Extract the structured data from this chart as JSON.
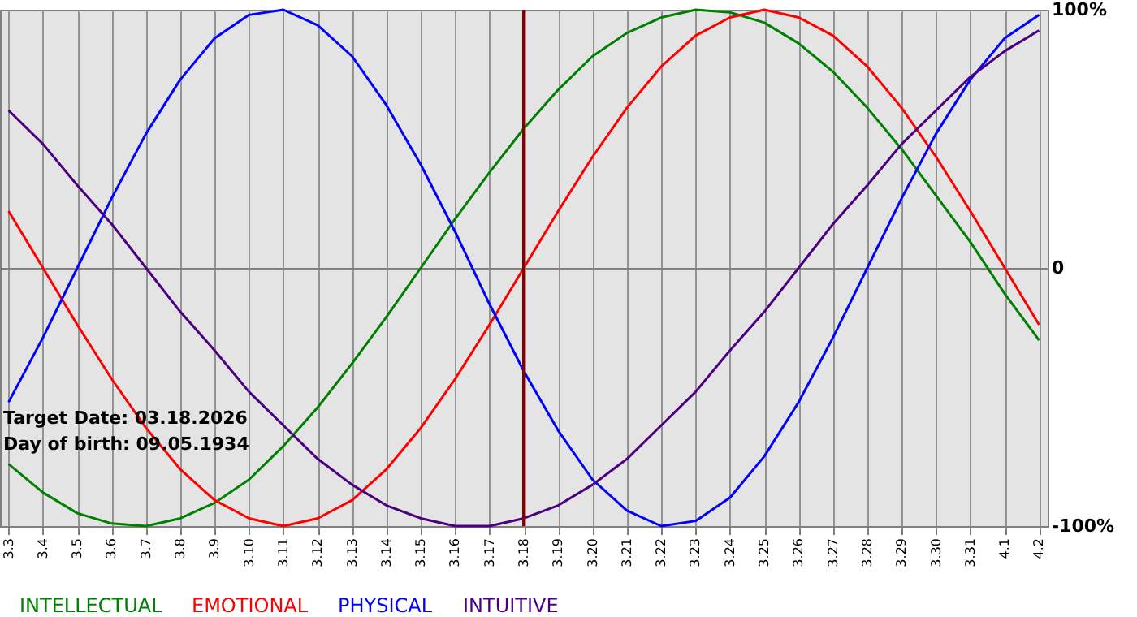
{
  "chart_data": {
    "type": "line",
    "categories": [
      "3.3",
      "3.4",
      "3.5",
      "3.6",
      "3.7",
      "3.8",
      "3.9",
      "3.10",
      "3.11",
      "3.12",
      "3.13",
      "3.14",
      "3.15",
      "3.16",
      "3.17",
      "3.18",
      "3.19",
      "3.20",
      "3.21",
      "3.22",
      "3.23",
      "3.24",
      "3.25",
      "3.26",
      "3.27",
      "3.28",
      "3.29",
      "3.30",
      "3.31",
      "4.1",
      "4.2"
    ],
    "series": [
      {
        "name": "INTELLECTUAL",
        "color": "#008000",
        "values": [
          -76,
          -87,
          -95,
          -99,
          -100,
          -97,
          -91,
          -82,
          -69,
          -54,
          -37,
          -19,
          0,
          19,
          37,
          54,
          69,
          82,
          91,
          97,
          100,
          99,
          95,
          87,
          76,
          62,
          46,
          28,
          10,
          -10,
          -28
        ]
      },
      {
        "name": "EMOTIONAL",
        "color": "#ff0000",
        "values": [
          22,
          0,
          -22,
          -43,
          -62,
          -78,
          -90,
          -97,
          -100,
          -97,
          -90,
          -78,
          -62,
          -43,
          -22,
          0,
          22,
          43,
          62,
          78,
          90,
          97,
          100,
          97,
          90,
          78,
          62,
          43,
          22,
          0,
          -22
        ]
      },
      {
        "name": "PHYSICAL",
        "color": "#0000ff",
        "values": [
          -52,
          -27,
          0,
          27,
          52,
          73,
          89,
          98,
          100,
          94,
          82,
          63,
          40,
          14,
          -14,
          -40,
          -63,
          -82,
          -94,
          -100,
          -98,
          -89,
          -73,
          -52,
          -27,
          0,
          27,
          52,
          73,
          89,
          98
        ]
      },
      {
        "name": "INTUITIVE",
        "color": "#4b0082",
        "values": [
          61,
          48,
          32,
          17,
          0,
          -17,
          -32,
          -48,
          -61,
          -74,
          -84,
          -92,
          -97,
          -100,
          -100,
          -97,
          -92,
          -84,
          -74,
          -61,
          -48,
          -32,
          -17,
          0,
          17,
          32,
          48,
          61,
          74,
          84,
          92
        ]
      }
    ],
    "ylim": [
      -100,
      100
    ],
    "yticks": [
      {
        "value": 100,
        "label": "100%"
      },
      0,
      {
        "value": -100,
        "label": "-100%"
      }
    ],
    "grid": true,
    "legend": "bottom",
    "marker": "none",
    "line_style": "solid",
    "ref_lines": [
      {
        "axis": "x",
        "value": "3.18",
        "color": "#800000"
      }
    ],
    "annotations": [
      "Target Date: 03.18.2026",
      "Day of birth: 09.05.1934"
    ]
  }
}
